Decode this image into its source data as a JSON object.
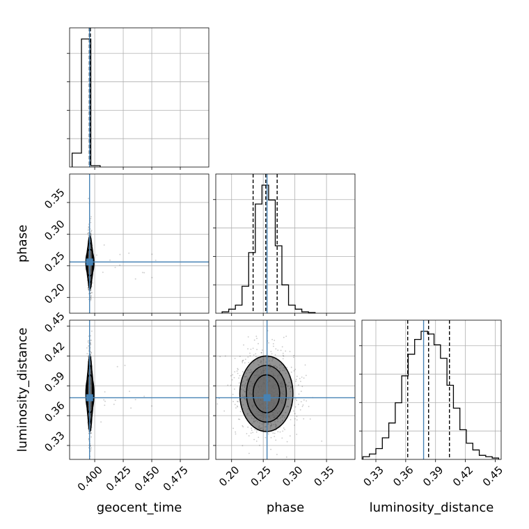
{
  "chart_data": {
    "type": "corner",
    "parameters": [
      "geocent_time",
      "phase",
      "luminosity_distance"
    ],
    "axis_labels": [
      "geocent_time",
      "phase",
      "luminosity_distance"
    ],
    "ranges": {
      "geocent_time": [
        0.378,
        0.5
      ],
      "phase": [
        0.175,
        0.395
      ],
      "luminosity_distance": [
        0.316,
        0.456
      ]
    },
    "ticks": {
      "geocent_time": [
        0.4,
        0.425,
        0.45,
        0.475
      ],
      "phase": [
        0.2,
        0.25,
        0.3,
        0.35
      ],
      "luminosity_distance": [
        0.33,
        0.36,
        0.39,
        0.42,
        0.45
      ]
    },
    "tick_labels": {
      "geocent_time": [
        "0.400",
        "0.425",
        "0.450",
        "0.475"
      ],
      "phase": [
        "0.20",
        "0.25",
        "0.30",
        "0.35"
      ],
      "luminosity_distance": [
        "0.33",
        "0.36",
        "0.39",
        "0.42",
        "0.45"
      ]
    },
    "truths": {
      "geocent_time": 0.3955,
      "phase": 0.256,
      "luminosity_distance": 0.378
    },
    "quantiles": {
      "geocent_time": [
        0.3953,
        0.3958,
        0.3962
      ],
      "phase": [
        0.234,
        0.254,
        0.272
      ],
      "luminosity_distance": [
        0.362,
        0.383,
        0.404
      ]
    },
    "histograms": {
      "geocent_time": {
        "edges": [
          0.3802,
          0.3884,
          0.3966,
          0.4048
        ],
        "counts": [
          0.1,
          0.92,
          0.01
        ]
      },
      "phase": {
        "edges": [
          0.185,
          0.1955,
          0.206,
          0.2165,
          0.227,
          0.2375,
          0.248,
          0.2585,
          0.269,
          0.2795,
          0.29,
          0.3005,
          0.311,
          0.3215,
          0.332
        ],
        "counts": [
          0.01,
          0.03,
          0.06,
          0.2,
          0.45,
          0.81,
          0.95,
          0.84,
          0.5,
          0.21,
          0.06,
          0.03,
          0.01,
          0.005
        ]
      },
      "luminosity_distance": {
        "edges": [
          0.317,
          0.3235,
          0.33,
          0.3365,
          0.343,
          0.3495,
          0.356,
          0.3625,
          0.369,
          0.3755,
          0.382,
          0.3885,
          0.395,
          0.4015,
          0.408,
          0.4145,
          0.421,
          0.4275,
          0.434,
          0.4405,
          0.447,
          0.4535
        ],
        "counts": [
          0.02,
          0.04,
          0.08,
          0.16,
          0.27,
          0.42,
          0.62,
          0.78,
          0.89,
          0.95,
          0.93,
          0.85,
          0.75,
          0.55,
          0.38,
          0.22,
          0.12,
          0.07,
          0.03,
          0.02,
          0.01
        ]
      }
    },
    "samples": {
      "geocent_time": {
        "mean": 0.3958,
        "sd": 0.0007
      },
      "phase": {
        "mean": 0.255,
        "sd": 0.021
      },
      "luminosity_distance": {
        "mean": 0.382,
        "sd": 0.019
      }
    },
    "contour_levels": [
      0.5,
      1.0,
      1.5,
      2.0
    ],
    "grid": true
  }
}
